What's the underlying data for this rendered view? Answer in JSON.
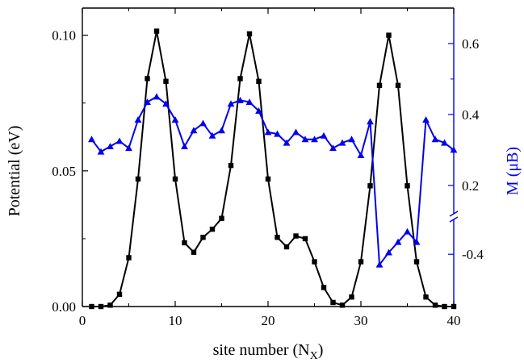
{
  "chart_data": {
    "type": "line",
    "xlabel": {
      "prefix": "site number (N",
      "sub": "X",
      "suffix": ")"
    },
    "ylabel_left": "Potential (eV)",
    "ylabel_right": {
      "prefix": "M (",
      "mu": "μ",
      "suffix": "B)"
    },
    "xlim": [
      0,
      40
    ],
    "ylim_left": [
      0,
      0.11
    ],
    "x_ticks": [
      0,
      10,
      20,
      30,
      40
    ],
    "y_left_ticks": [
      "0.00",
      "0.05",
      "0.10"
    ],
    "y_right_upper_ticks": [
      "0.2",
      "0.4",
      "0.6"
    ],
    "y_right_lower_ticks": [
      "-0.4"
    ],
    "right_axis_segments": {
      "upper": {
        "range": [
          0.12,
          0.7
        ]
      },
      "lower": {
        "range": [
          -0.55,
          -0.3
        ]
      },
      "break": true
    },
    "colors": {
      "potential": "#000000",
      "magnetization": "#0000ee"
    },
    "series": [
      {
        "key": "potential",
        "axis": "left",
        "marker": "square",
        "x": [
          1,
          2,
          3,
          4,
          5,
          6,
          7,
          8,
          9,
          10,
          11,
          12,
          13,
          14,
          15,
          16,
          17,
          18,
          19,
          20,
          21,
          22,
          23,
          24,
          25,
          26,
          27,
          28,
          29,
          30,
          31,
          32,
          33,
          34,
          35,
          36,
          37,
          38,
          39,
          40
        ],
        "y": [
          0.0,
          0.0,
          0.0005,
          0.0045,
          0.018,
          0.047,
          0.084,
          0.1015,
          0.083,
          0.047,
          0.0235,
          0.02,
          0.0255,
          0.0285,
          0.0325,
          0.052,
          0.084,
          0.1005,
          0.083,
          0.047,
          0.0255,
          0.022,
          0.026,
          0.025,
          0.0165,
          0.007,
          0.0015,
          0.0005,
          0.0035,
          0.0165,
          0.0445,
          0.0815,
          0.1,
          0.0815,
          0.0445,
          0.0165,
          0.0035,
          0.0005,
          0.0,
          0.0
        ]
      },
      {
        "key": "magnetization",
        "axis": "right",
        "marker": "triangle",
        "x": [
          1,
          2,
          3,
          4,
          5,
          6,
          7,
          8,
          9,
          10,
          11,
          12,
          13,
          14,
          15,
          16,
          17,
          18,
          19,
          20,
          21,
          22,
          23,
          24,
          25,
          26,
          27,
          28,
          29,
          30,
          31,
          32,
          33,
          34,
          35,
          36,
          37,
          38,
          39,
          40
        ],
        "y": [
          0.33,
          0.295,
          0.31,
          0.325,
          0.305,
          0.385,
          0.435,
          0.45,
          0.43,
          0.385,
          0.31,
          0.355,
          0.375,
          0.34,
          0.355,
          0.43,
          0.44,
          0.435,
          0.41,
          0.35,
          0.345,
          0.32,
          0.35,
          0.33,
          0.33,
          0.34,
          0.305,
          0.32,
          0.33,
          0.285,
          0.38,
          -0.43,
          -0.395,
          -0.365,
          -0.335,
          -0.365,
          0.385,
          0.33,
          0.32,
          0.3
        ]
      }
    ]
  }
}
